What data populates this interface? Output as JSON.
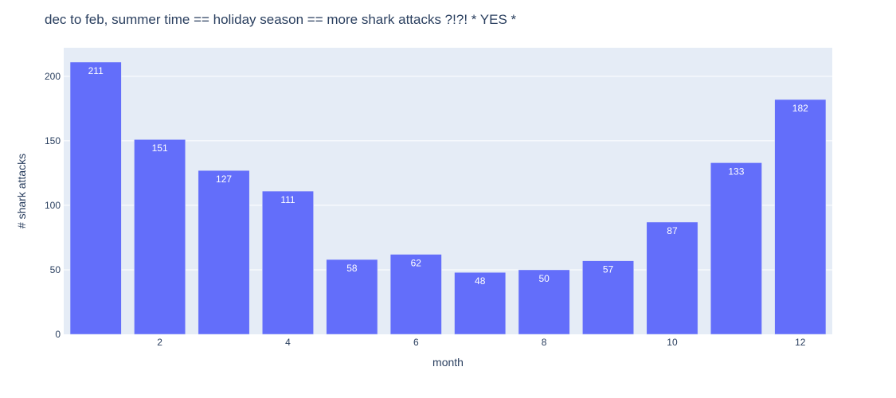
{
  "chart_data": {
    "type": "bar",
    "title": "dec to feb, summer time == holiday season == more shark attacks ?!?! * YES *",
    "xlabel": "month",
    "ylabel": "# shark attacks",
    "x": [
      1,
      2,
      3,
      4,
      5,
      6,
      7,
      8,
      9,
      10,
      11,
      12
    ],
    "values": [
      211,
      151,
      127,
      111,
      58,
      62,
      48,
      50,
      57,
      87,
      133,
      182
    ],
    "data_labels": [
      "211",
      "151",
      "127",
      "111",
      "58",
      "62",
      "48",
      "50",
      "57",
      "87",
      "133",
      "182"
    ],
    "x_ticks": [
      2,
      4,
      6,
      8,
      10,
      12
    ],
    "x_tick_labels": [
      "2",
      "4",
      "6",
      "8",
      "10",
      "12"
    ],
    "y_ticks": [
      0,
      50,
      100,
      150,
      200
    ],
    "y_tick_labels": [
      "0",
      "50",
      "100",
      "150",
      "200"
    ],
    "xlim": [
      0.5,
      12.5
    ],
    "ylim": [
      0,
      222.1
    ],
    "grid": true,
    "colors": {
      "bar": "#636efa",
      "plot_background": "#e5ecf6",
      "grid": "#ffffff",
      "text": "#2a3f5f",
      "bar_label": "#ffffff"
    }
  }
}
